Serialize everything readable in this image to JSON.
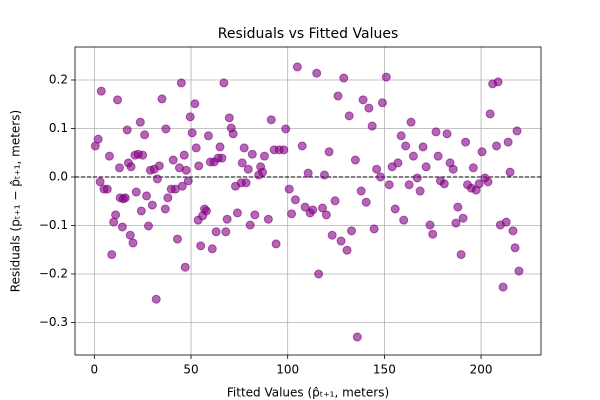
{
  "chart_data": {
    "type": "scatter",
    "title": "Residuals vs Fitted Values",
    "x_label": "Fitted Values (p̂ₜ₊₁, meters)",
    "y_label": "Residuals (pₜ₊₁ − p̂ₜ₊₁, meters)",
    "color": "#800080",
    "grid": true,
    "reference_line": 0,
    "xlim": [
      -10,
      231
    ],
    "ylim": [
      -0.367,
      0.268
    ],
    "xticks": [
      0,
      50,
      100,
      150,
      200
    ],
    "yticks": [
      {
        "value": -0.3,
        "label": "−0.3"
      },
      {
        "value": -0.2,
        "label": "−0.2"
      },
      {
        "value": -0.1,
        "label": "−0.1"
      },
      {
        "value": 0,
        "label": "0.0"
      },
      0.1,
      0.2
    ],
    "x": [
      0.5,
      2,
      3.6,
      3,
      5,
      6.7,
      7.8,
      9,
      10,
      11,
      12,
      13,
      13.4,
      14.5,
      15,
      16,
      17,
      17.6,
      18.6,
      19,
      20,
      21,
      21.7,
      22.7,
      23.8,
      24.3,
      25,
      26,
      27,
      28,
      29,
      30,
      31,
      32,
      32.6,
      33.6,
      35,
      36.7,
      37,
      38,
      39.8,
      40.8,
      41.9,
      43,
      44,
      45,
      45.5,
      46.5,
      47,
      47.5,
      48.6,
      49.6,
      50.6,
      52,
      52.7,
      53.7,
      54,
      55,
      56,
      57,
      58,
      59,
      60,
      61,
      62,
      63,
      64,
      65,
      66,
      67,
      68,
      68.7,
      69.8,
      70.8,
      71.8,
      73,
      74,
      76,
      76.5,
      77.5,
      78.5,
      79.6,
      80.6,
      81.7,
      83,
      85,
      86,
      87,
      88,
      90,
      91.5,
      93,
      94,
      95.6,
      98,
      99,
      100.8,
      102,
      104,
      105,
      107.5,
      109,
      110.6,
      111.6,
      113,
      115,
      116,
      118,
      119,
      120,
      121.4,
      123,
      124.5,
      126,
      127.6,
      129,
      130.7,
      131.8,
      133,
      135,
      136,
      138,
      139,
      140.6,
      142,
      143.7,
      144.7,
      146,
      148,
      149,
      151,
      152.5,
      154,
      155.6,
      157,
      158.7,
      160,
      161,
      162.8,
      163.8,
      165,
      167,
      168.5,
      170,
      171.6,
      173.6,
      175,
      176.7,
      177.8,
      179,
      181,
      182.4,
      184,
      185.6,
      187,
      188,
      189.7,
      190.7,
      192,
      193,
      195,
      196,
      197.4,
      199,
      200.5,
      202,
      203.6,
      204.7,
      206,
      208,
      208.8,
      210,
      211.4,
      213,
      214,
      215,
      216.5,
      217.6,
      218.6,
      219.6
    ],
    "values": [
      0.064,
      0.078,
      0.177,
      -0.01,
      -0.025,
      -0.025,
      0.043,
      -0.16,
      -0.093,
      -0.078,
      0.159,
      0.019,
      -0.043,
      -0.103,
      -0.045,
      -0.043,
      0.097,
      0.029,
      -0.12,
      0.021,
      -0.136,
      0.045,
      -0.031,
      0.047,
      0.113,
      -0.07,
      0.045,
      0.087,
      -0.039,
      -0.101,
      0.014,
      -0.058,
      0.016,
      -0.252,
      -0.004,
      0.023,
      0.161,
      -0.066,
      0.099,
      -0.043,
      -0.025,
      0.035,
      -0.025,
      -0.128,
      0.019,
      0.194,
      -0.019,
      0.045,
      -0.186,
      0.014,
      -0.008,
      0.124,
      0.091,
      0.151,
      0.06,
      -0.089,
      0.023,
      -0.142,
      -0.08,
      -0.066,
      -0.07,
      0.085,
      0.031,
      -0.148,
      0.031,
      -0.113,
      0.039,
      0.062,
      0.039,
      0.194,
      -0.113,
      -0.087,
      0.122,
      0.101,
      0.089,
      -0.019,
      -0.074,
      -0.012,
      0.029,
      0.06,
      -0.012,
      0.016,
      -0.099,
      0.047,
      -0.078,
      0.004,
      0.021,
      0.01,
      0.043,
      -0.087,
      0.118,
      0.056,
      -0.138,
      0.056,
      0.056,
      0.099,
      -0.025,
      -0.076,
      -0.047,
      0.227,
      0.064,
      -0.062,
      0.008,
      -0.074,
      -0.068,
      0.214,
      -0.2,
      -0.064,
      0.004,
      -0.078,
      0.052,
      -0.12,
      -0.049,
      0.167,
      -0.132,
      0.204,
      -0.151,
      0.126,
      -0.111,
      0.035,
      -0.33,
      -0.029,
      0.159,
      -0.052,
      0.142,
      0.105,
      -0.107,
      0.016,
      0,
      0.153,
      0.206,
      -0.016,
      0.021,
      -0.066,
      0.029,
      0.085,
      -0.089,
      0.064,
      -0.016,
      0.113,
      0.043,
      -0.002,
      -0.029,
      0.062,
      0.021,
      -0.099,
      -0.118,
      0.093,
      0.043,
      -0.008,
      -0.014,
      0.089,
      0.029,
      0.016,
      -0.095,
      -0.062,
      -0.16,
      -0.085,
      0.072,
      -0.016,
      -0.023,
      0.019,
      -0.027,
      -0.014,
      0.052,
      -0.002,
      -0.01,
      0.13,
      0.192,
      0.064,
      0.196,
      -0.099,
      -0.227,
      -0.093,
      0.072,
      0.01,
      -0.111,
      -0.146,
      0.095,
      -0.194
    ]
  }
}
